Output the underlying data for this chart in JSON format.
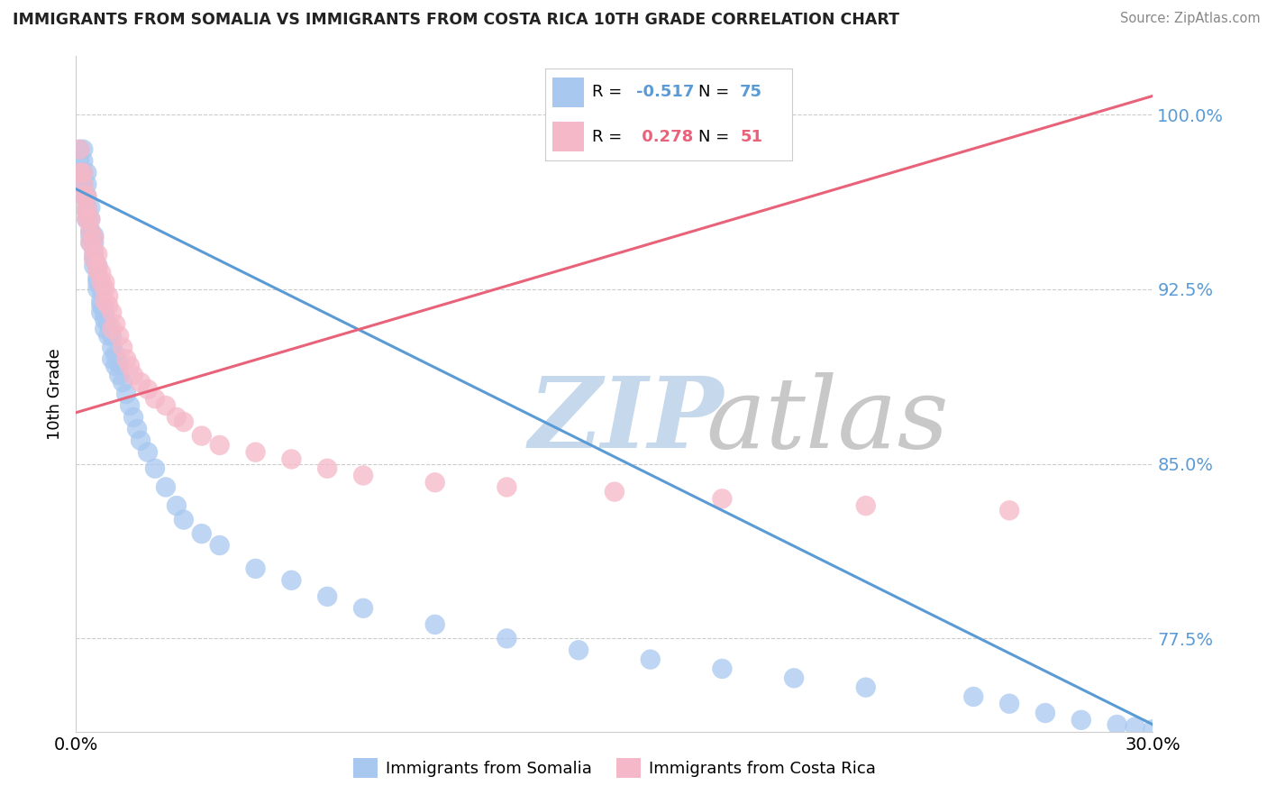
{
  "title": "IMMIGRANTS FROM SOMALIA VS IMMIGRANTS FROM COSTA RICA 10TH GRADE CORRELATION CHART",
  "source": "Source: ZipAtlas.com",
  "xlim": [
    0.0,
    0.3
  ],
  "ylim": [
    0.735,
    1.025
  ],
  "ylabel": "10th Grade",
  "somalia_R": -0.517,
  "somalia_N": 75,
  "costarica_R": 0.278,
  "costarica_N": 51,
  "somalia_color": "#a8c8f0",
  "costarica_color": "#f5b8c8",
  "somalia_line_color": "#5b9bd5",
  "costarica_line_color": "#e8637a",
  "background_color": "#ffffff",
  "yticks": [
    0.775,
    0.85,
    0.925,
    1.0
  ],
  "ytick_labels": [
    "77.5%",
    "85.0%",
    "92.5%",
    "100.0%"
  ],
  "xtick_positions": [
    0.0,
    0.3
  ],
  "xtick_labels": [
    "0.0%",
    "30.0%"
  ],
  "somalia_trend_x": [
    0.0,
    0.3
  ],
  "somalia_trend_y": [
    0.968,
    0.738
  ],
  "costarica_trend_x": [
    0.0,
    0.3
  ],
  "costarica_trend_y": [
    0.872,
    1.008
  ],
  "somalia_x": [
    0.001,
    0.001,
    0.001,
    0.002,
    0.002,
    0.002,
    0.002,
    0.002,
    0.003,
    0.003,
    0.003,
    0.003,
    0.003,
    0.003,
    0.004,
    0.004,
    0.004,
    0.004,
    0.004,
    0.005,
    0.005,
    0.005,
    0.005,
    0.005,
    0.006,
    0.006,
    0.006,
    0.006,
    0.007,
    0.007,
    0.007,
    0.007,
    0.008,
    0.008,
    0.008,
    0.009,
    0.009,
    0.01,
    0.01,
    0.01,
    0.011,
    0.011,
    0.012,
    0.012,
    0.013,
    0.014,
    0.015,
    0.016,
    0.017,
    0.018,
    0.02,
    0.022,
    0.025,
    0.028,
    0.03,
    0.035,
    0.04,
    0.05,
    0.06,
    0.07,
    0.08,
    0.1,
    0.12,
    0.14,
    0.16,
    0.18,
    0.2,
    0.22,
    0.25,
    0.26,
    0.27,
    0.28,
    0.29,
    0.295,
    0.3
  ],
  "somalia_y": [
    0.975,
    0.98,
    0.985,
    0.965,
    0.97,
    0.975,
    0.98,
    0.985,
    0.96,
    0.965,
    0.97,
    0.975,
    0.955,
    0.958,
    0.95,
    0.955,
    0.96,
    0.945,
    0.948,
    0.94,
    0.945,
    0.948,
    0.935,
    0.938,
    0.93,
    0.935,
    0.925,
    0.928,
    0.92,
    0.925,
    0.915,
    0.918,
    0.912,
    0.908,
    0.915,
    0.905,
    0.91,
    0.9,
    0.905,
    0.895,
    0.892,
    0.897,
    0.888,
    0.893,
    0.885,
    0.88,
    0.875,
    0.87,
    0.865,
    0.86,
    0.855,
    0.848,
    0.84,
    0.832,
    0.826,
    0.82,
    0.815,
    0.805,
    0.8,
    0.793,
    0.788,
    0.781,
    0.775,
    0.77,
    0.766,
    0.762,
    0.758,
    0.754,
    0.75,
    0.747,
    0.743,
    0.74,
    0.738,
    0.737,
    0.736
  ],
  "costarica_x": [
    0.001,
    0.001,
    0.002,
    0.002,
    0.002,
    0.003,
    0.003,
    0.003,
    0.003,
    0.004,
    0.004,
    0.004,
    0.005,
    0.005,
    0.005,
    0.006,
    0.006,
    0.006,
    0.007,
    0.007,
    0.008,
    0.008,
    0.008,
    0.009,
    0.009,
    0.01,
    0.01,
    0.011,
    0.012,
    0.013,
    0.014,
    0.015,
    0.016,
    0.018,
    0.02,
    0.022,
    0.025,
    0.028,
    0.03,
    0.035,
    0.04,
    0.05,
    0.06,
    0.07,
    0.08,
    0.1,
    0.12,
    0.15,
    0.18,
    0.22,
    0.26
  ],
  "costarica_y": [
    0.975,
    0.985,
    0.965,
    0.97,
    0.975,
    0.96,
    0.965,
    0.955,
    0.958,
    0.95,
    0.955,
    0.945,
    0.942,
    0.947,
    0.938,
    0.94,
    0.933,
    0.935,
    0.928,
    0.932,
    0.925,
    0.928,
    0.92,
    0.918,
    0.922,
    0.915,
    0.908,
    0.91,
    0.905,
    0.9,
    0.895,
    0.892,
    0.888,
    0.885,
    0.882,
    0.878,
    0.875,
    0.87,
    0.868,
    0.862,
    0.858,
    0.855,
    0.852,
    0.848,
    0.845,
    0.842,
    0.84,
    0.838,
    0.835,
    0.832,
    0.83
  ]
}
